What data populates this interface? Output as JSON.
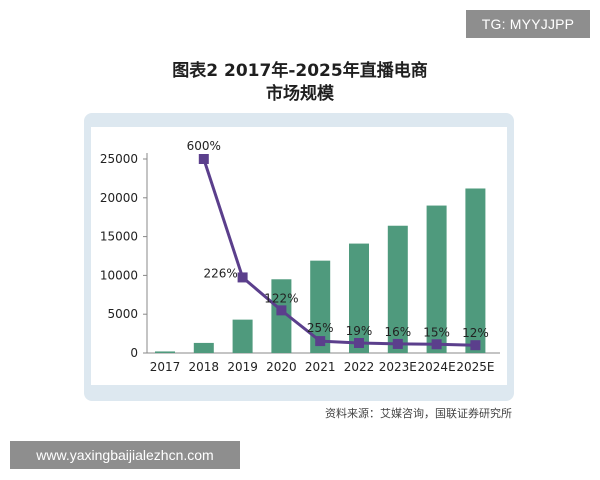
{
  "watermarks": {
    "top_right": "TG: MYYJJPP",
    "bottom_left": "www.yaxingbaijialezhcn.com"
  },
  "figure": {
    "title_line1": "图表2 2017年-2025年直播电商",
    "title_line2": "市场规模",
    "source": "资料来源：艾媒咨询，国联证券研究所"
  },
  "colors": {
    "bar": "#4f9a7d",
    "line": "#5b3f8c",
    "panel": "#dde8f0",
    "axis": "#888888"
  },
  "chart_data": {
    "type": "bar",
    "title": "",
    "xlabel": "",
    "ylabel": "",
    "ylim": [
      0,
      25000
    ],
    "yticks": [
      0,
      5000,
      10000,
      15000,
      20000,
      25000
    ],
    "categories": [
      "2017",
      "2018",
      "2019",
      "2020",
      "2021",
      "2022",
      "2023E",
      "2024E",
      "2025E"
    ],
    "series": [
      {
        "type": "bar",
        "values": [
          200,
          1300,
          4300,
          9500,
          11900,
          14100,
          16400,
          19000,
          21200
        ]
      },
      {
        "type": "line",
        "values": [
          null,
          600,
          226,
          122,
          25,
          19,
          16,
          15,
          12
        ],
        "labels": [
          "",
          "600%",
          "226%",
          "122%",
          "25%",
          "19%",
          "16%",
          "15%",
          "12%"
        ]
      }
    ],
    "grid": false,
    "legend": "none"
  }
}
